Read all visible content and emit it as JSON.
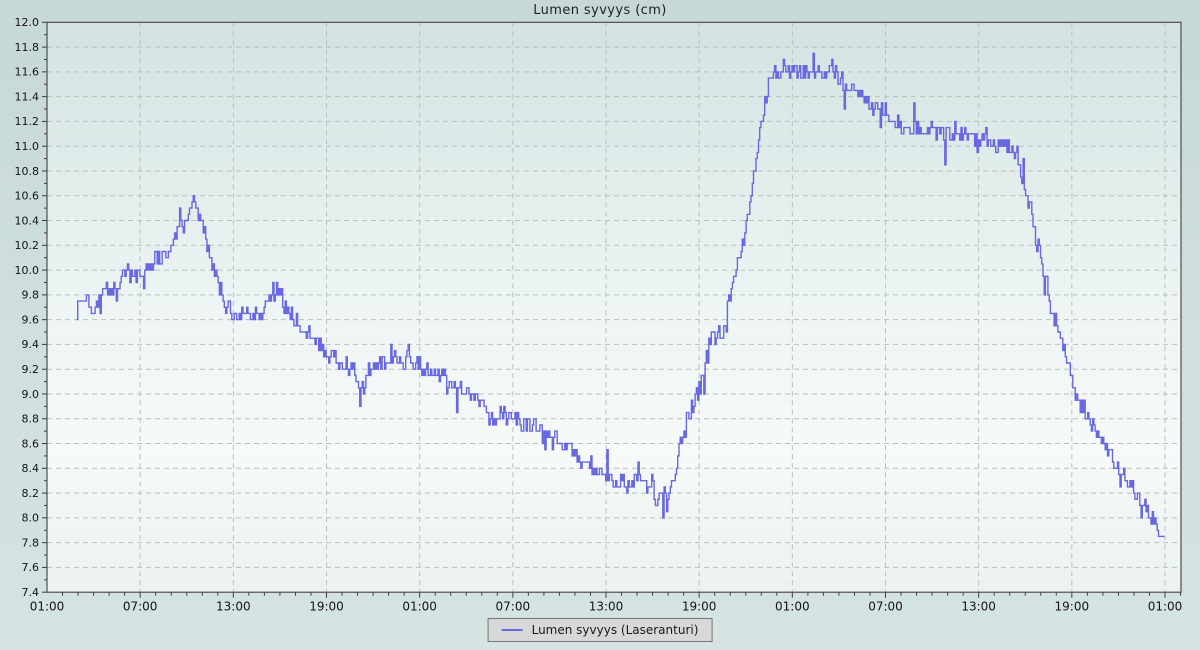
{
  "chart_data": {
    "type": "line",
    "style": "noisy-step-line",
    "title": "Lumen syvyys (cm)",
    "legend": {
      "position": "bottom-center",
      "entries": [
        {
          "label": "Lumen syvyys (Laseranturi)",
          "color": "#6868e1"
        }
      ]
    },
    "grid": true,
    "x_axis": {
      "unit": "time-of-day",
      "major_tick_hours": 6,
      "minor_tick_hours": 1,
      "range_hours": [
        0,
        73.07
      ],
      "tick_labels": [
        "01:00",
        "07:00",
        "13:00",
        "19:00",
        "01:00",
        "07:00",
        "13:00",
        "19:00",
        "01:00",
        "07:00",
        "13:00",
        "19:00",
        "01:00"
      ]
    },
    "y_axis": {
      "min": 7.4,
      "max": 12.0,
      "major_step": 0.2,
      "minor_step": 0.1,
      "tick_labels": [
        "7.4",
        "7.6",
        "7.8",
        "8.0",
        "8.2",
        "8.4",
        "8.6",
        "8.8",
        "9.0",
        "9.2",
        "9.4",
        "9.6",
        "9.8",
        "10.0",
        "10.2",
        "10.4",
        "10.6",
        "10.8",
        "11.0",
        "11.2",
        "11.4",
        "11.6",
        "11.8",
        "12.0"
      ]
    },
    "series": [
      {
        "name": "Lumen syvyys (Laseranturi)",
        "color": "#6868e1",
        "noise": {
          "base_amplitude": 0.07,
          "spike_probability": 0.07,
          "spike_amplitude": 0.17,
          "quantize_step_cm": 0.05,
          "sample_interval_hours": 0.08,
          "seed": 1337,
          "clamp": [
            7.75,
            11.85
          ]
        },
        "trend_hours_cm": [
          [
            1.9,
            9.65
          ],
          [
            2.05,
            9.78
          ],
          [
            2.3,
            9.75
          ],
          [
            2.6,
            9.8
          ],
          [
            2.9,
            9.62
          ],
          [
            3.2,
            9.78
          ],
          [
            3.5,
            9.82
          ],
          [
            3.8,
            9.85
          ],
          [
            4.1,
            9.88
          ],
          [
            4.4,
            9.85
          ],
          [
            4.7,
            9.92
          ],
          [
            5.0,
            9.95
          ],
          [
            5.4,
            9.98
          ],
          [
            5.8,
            10.0
          ],
          [
            6.1,
            9.92
          ],
          [
            6.4,
            10.02
          ],
          [
            6.7,
            10.05
          ],
          [
            7.0,
            10.08
          ],
          [
            7.4,
            10.12
          ],
          [
            7.8,
            10.18
          ],
          [
            8.1,
            10.25
          ],
          [
            8.5,
            10.32
          ],
          [
            8.8,
            10.38
          ],
          [
            9.1,
            10.5
          ],
          [
            9.35,
            10.6
          ],
          [
            9.5,
            10.55
          ],
          [
            9.8,
            10.42
          ],
          [
            10.1,
            10.28
          ],
          [
            10.4,
            10.15
          ],
          [
            10.7,
            10.02
          ],
          [
            11.0,
            9.9
          ],
          [
            11.3,
            9.78
          ],
          [
            11.6,
            9.7
          ],
          [
            12.0,
            9.66
          ],
          [
            12.4,
            9.65
          ],
          [
            12.8,
            9.68
          ],
          [
            13.2,
            9.64
          ],
          [
            13.6,
            9.66
          ],
          [
            14.0,
            9.7
          ],
          [
            14.3,
            9.78
          ],
          [
            14.6,
            9.86
          ],
          [
            14.9,
            9.85
          ],
          [
            15.2,
            9.75
          ],
          [
            15.5,
            9.68
          ],
          [
            15.9,
            9.6
          ],
          [
            16.3,
            9.55
          ],
          [
            16.7,
            9.5
          ],
          [
            17.1,
            9.44
          ],
          [
            17.5,
            9.38
          ],
          [
            17.9,
            9.32
          ],
          [
            18.3,
            9.28
          ],
          [
            18.7,
            9.3
          ],
          [
            19.1,
            9.24
          ],
          [
            19.5,
            9.22
          ],
          [
            19.9,
            9.16
          ],
          [
            20.2,
            9.05
          ],
          [
            20.45,
            9.02
          ],
          [
            20.7,
            9.18
          ],
          [
            21.0,
            9.24
          ],
          [
            21.4,
            9.26
          ],
          [
            21.8,
            9.24
          ],
          [
            22.2,
            9.28
          ],
          [
            22.6,
            9.3
          ],
          [
            23.0,
            9.26
          ],
          [
            23.3,
            9.33
          ],
          [
            23.6,
            9.25
          ],
          [
            24.0,
            9.25
          ],
          [
            24.5,
            9.2
          ],
          [
            25.0,
            9.15
          ],
          [
            25.5,
            9.12
          ],
          [
            26.0,
            9.1
          ],
          [
            26.5,
            9.05
          ],
          [
            27.0,
            9.0
          ],
          [
            27.5,
            8.95
          ],
          [
            28.0,
            8.9
          ],
          [
            28.4,
            8.85
          ],
          [
            28.7,
            8.72
          ],
          [
            29.0,
            8.85
          ],
          [
            29.5,
            8.82
          ],
          [
            30.0,
            8.8
          ],
          [
            30.5,
            8.76
          ],
          [
            31.0,
            8.74
          ],
          [
            31.5,
            8.72
          ],
          [
            32.0,
            8.68
          ],
          [
            32.5,
            8.64
          ],
          [
            33.0,
            8.6
          ],
          [
            33.5,
            8.56
          ],
          [
            34.0,
            8.52
          ],
          [
            34.5,
            8.46
          ],
          [
            35.0,
            8.42
          ],
          [
            35.3,
            8.38
          ],
          [
            35.6,
            8.35
          ],
          [
            36.0,
            8.33
          ],
          [
            36.5,
            8.3
          ],
          [
            37.0,
            8.3
          ],
          [
            37.5,
            8.28
          ],
          [
            38.0,
            8.3
          ],
          [
            38.5,
            8.26
          ],
          [
            39.0,
            8.28
          ],
          [
            39.3,
            8.15
          ],
          [
            39.6,
            8.28
          ],
          [
            39.9,
            8.12
          ],
          [
            40.2,
            8.28
          ],
          [
            40.5,
            8.4
          ],
          [
            40.7,
            8.55
          ],
          [
            40.9,
            8.65
          ],
          [
            41.1,
            8.78
          ],
          [
            41.3,
            8.82
          ],
          [
            41.6,
            8.9
          ],
          [
            41.9,
            9.0
          ],
          [
            42.2,
            9.15
          ],
          [
            42.5,
            9.3
          ],
          [
            42.8,
            9.45
          ],
          [
            43.1,
            9.5
          ],
          [
            43.4,
            9.48
          ],
          [
            43.6,
            9.55
          ],
          [
            43.9,
            9.75
          ],
          [
            44.2,
            9.95
          ],
          [
            44.5,
            10.1
          ],
          [
            44.8,
            10.25
          ],
          [
            45.1,
            10.42
          ],
          [
            45.4,
            10.65
          ],
          [
            45.7,
            10.9
          ],
          [
            46.0,
            11.15
          ],
          [
            46.3,
            11.42
          ],
          [
            46.6,
            11.6
          ],
          [
            46.9,
            11.63
          ],
          [
            47.2,
            11.6
          ],
          [
            47.5,
            11.62
          ],
          [
            47.8,
            11.58
          ],
          [
            48.1,
            11.6
          ],
          [
            48.5,
            11.63
          ],
          [
            48.9,
            11.58
          ],
          [
            49.3,
            11.6
          ],
          [
            49.7,
            11.62
          ],
          [
            50.1,
            11.6
          ],
          [
            50.5,
            11.65
          ],
          [
            50.8,
            11.6
          ],
          [
            51.1,
            11.55
          ],
          [
            51.5,
            11.5
          ],
          [
            51.9,
            11.48
          ],
          [
            52.3,
            11.42
          ],
          [
            52.7,
            11.38
          ],
          [
            53.1,
            11.32
          ],
          [
            53.5,
            11.3
          ],
          [
            54.0,
            11.28
          ],
          [
            54.5,
            11.22
          ],
          [
            55.0,
            11.2
          ],
          [
            55.5,
            11.16
          ],
          [
            56.0,
            11.15
          ],
          [
            56.5,
            11.13
          ],
          [
            57.0,
            11.15
          ],
          [
            57.5,
            11.12
          ],
          [
            58.0,
            11.1
          ],
          [
            58.5,
            11.12
          ],
          [
            59.0,
            11.1
          ],
          [
            59.5,
            11.08
          ],
          [
            60.0,
            11.05
          ],
          [
            60.5,
            11.05
          ],
          [
            61.0,
            11.02
          ],
          [
            61.5,
            11.05
          ],
          [
            62.0,
            11.0
          ],
          [
            62.4,
            10.95
          ],
          [
            62.7,
            10.8
          ],
          [
            63.0,
            10.65
          ],
          [
            63.3,
            10.5
          ],
          [
            63.6,
            10.3
          ],
          [
            63.9,
            10.12
          ],
          [
            64.2,
            9.95
          ],
          [
            64.5,
            9.8
          ],
          [
            64.8,
            9.62
          ],
          [
            65.1,
            9.5
          ],
          [
            65.4,
            9.4
          ],
          [
            65.7,
            9.28
          ],
          [
            66.0,
            9.1
          ],
          [
            66.3,
            8.98
          ],
          [
            66.6,
            8.9
          ],
          [
            66.9,
            8.85
          ],
          [
            67.2,
            8.78
          ],
          [
            67.5,
            8.7
          ],
          [
            67.8,
            8.62
          ],
          [
            68.1,
            8.58
          ],
          [
            68.4,
            8.52
          ],
          [
            68.7,
            8.45
          ],
          [
            69.0,
            8.4
          ],
          [
            69.3,
            8.35
          ],
          [
            69.6,
            8.3
          ],
          [
            69.9,
            8.25
          ],
          [
            70.2,
            8.18
          ],
          [
            70.5,
            8.12
          ],
          [
            70.8,
            8.1
          ],
          [
            71.1,
            8.02
          ],
          [
            71.4,
            7.95
          ],
          [
            71.7,
            7.9
          ],
          [
            72.0,
            7.82
          ]
        ]
      }
    ]
  },
  "colors": {
    "figure_gradient": [
      "#c6d9d7",
      "#d0e0de",
      "#d5e4e2"
    ],
    "plot_gradient": [
      "#d3e3e1",
      "#eef5f4",
      "#f6faf9",
      "#ebf2f1"
    ],
    "frame": "#4d4d4d",
    "grid": "#b9c1c0",
    "tick": "#3c3c3c",
    "label_text": "#141414",
    "title_text": "#1e1e2a",
    "legend_bg": "#d7d9d8",
    "legend_border": "#767676",
    "legend_text": "#1a1a1a"
  }
}
